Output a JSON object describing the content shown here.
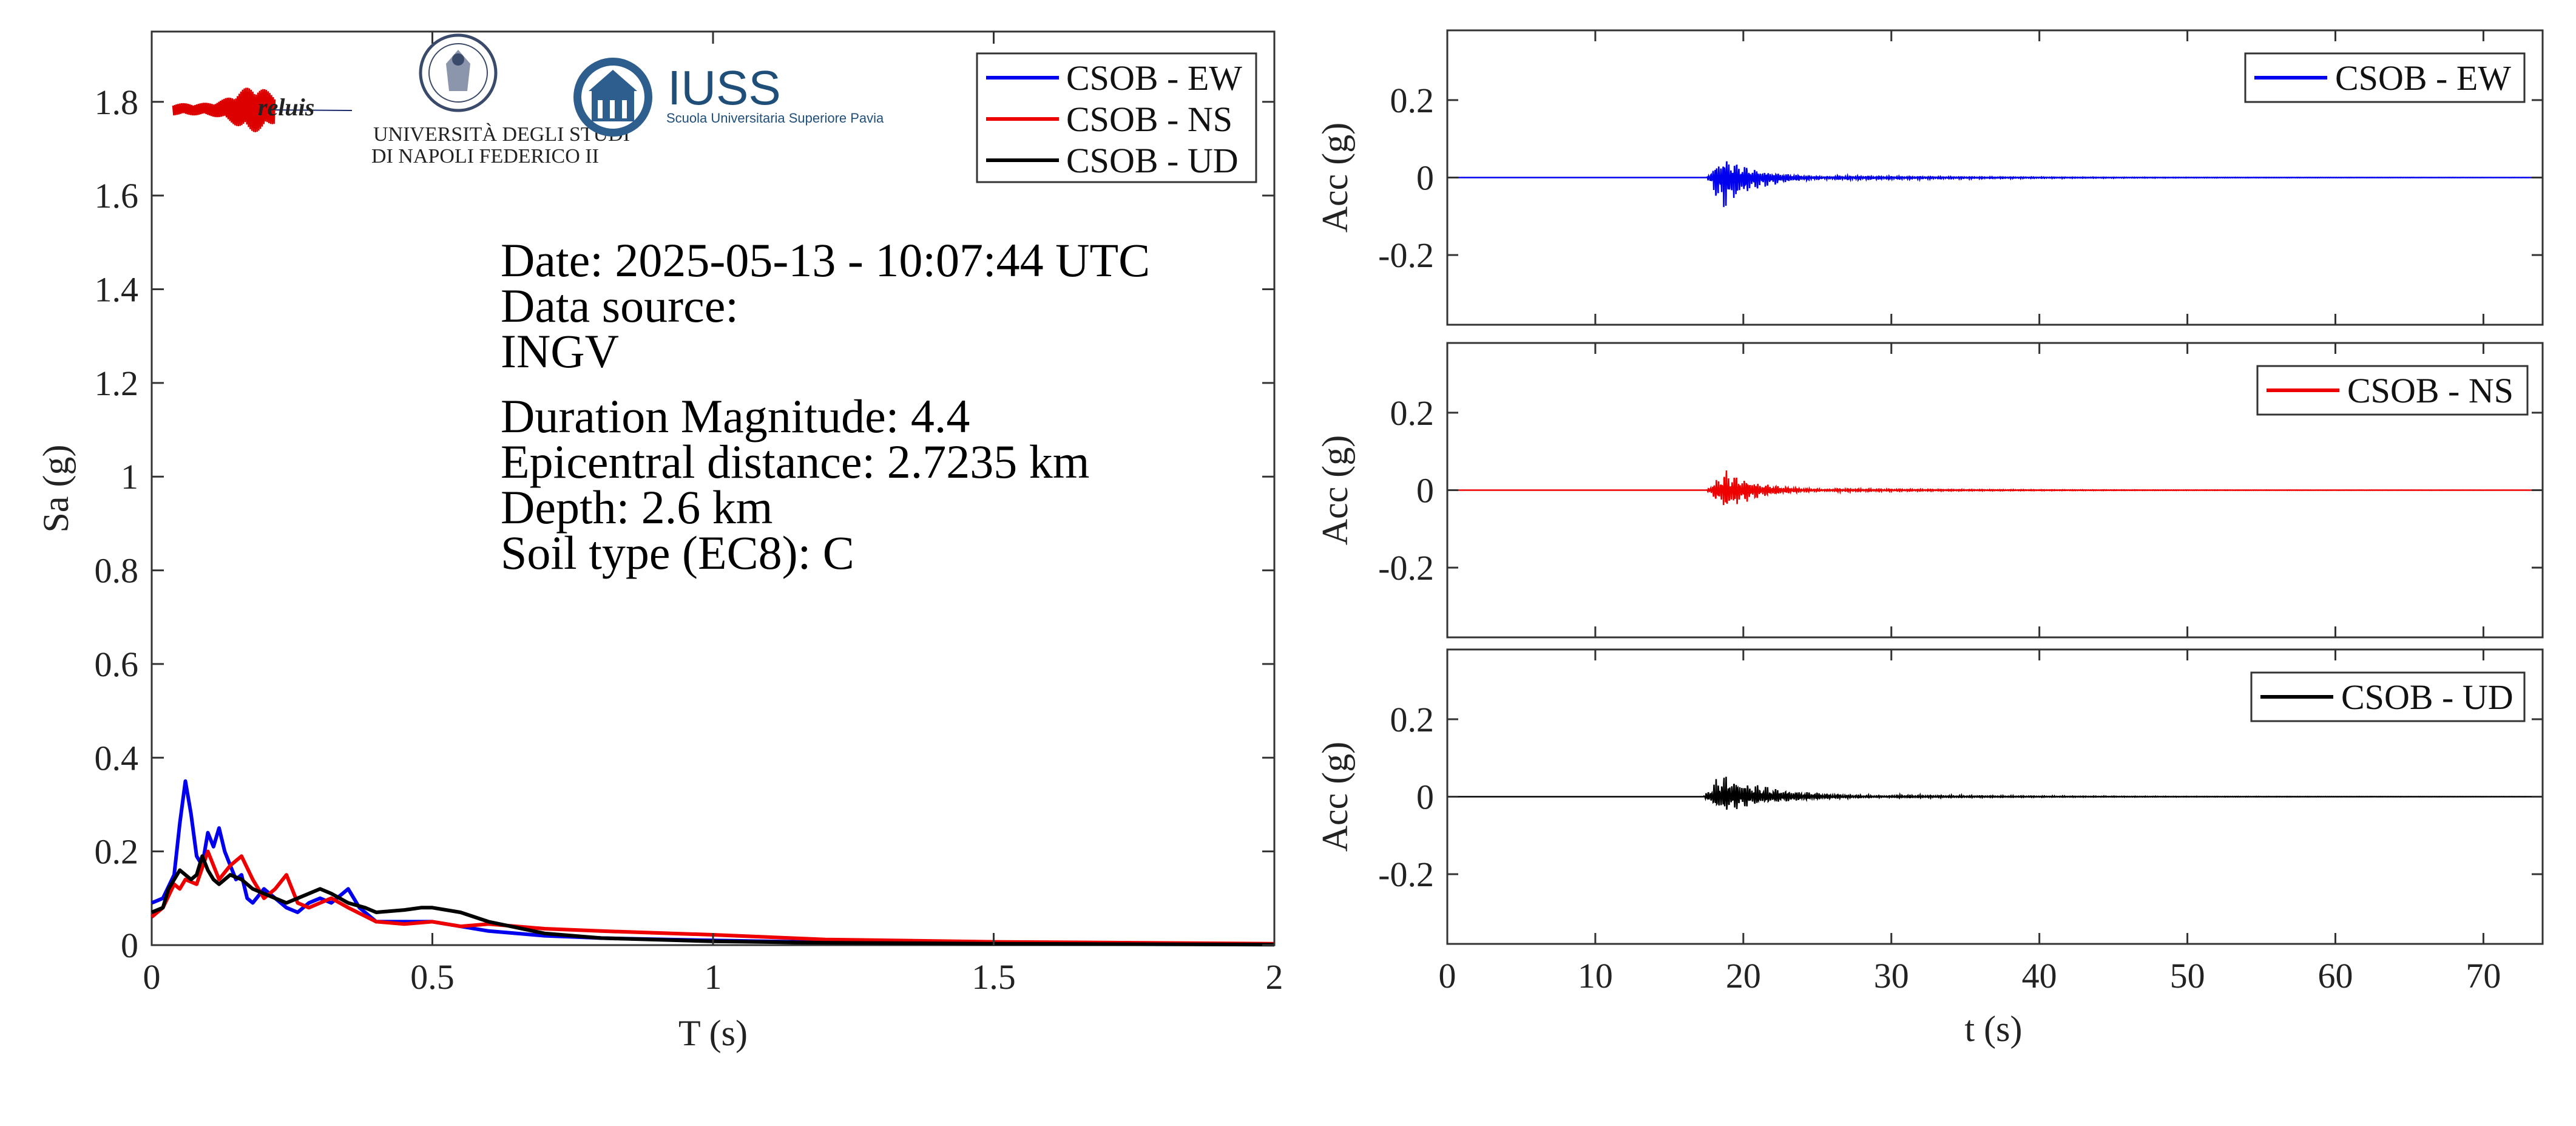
{
  "chart_data": [
    {
      "type": "line",
      "title": "",
      "xlabel": "T (s)",
      "ylabel": "Sa (g)",
      "xlim": [
        0,
        2
      ],
      "ylim": [
        0,
        1.95
      ],
      "x_ticks": [
        0,
        0.5,
        1,
        1.5,
        2
      ],
      "x_tick_labels": [
        "0",
        "0.5",
        "1",
        "1.5",
        "2"
      ],
      "y_ticks": [
        0,
        0.2,
        0.4,
        0.6,
        0.8,
        1,
        1.2,
        1.4,
        1.6,
        1.8
      ],
      "y_tick_labels": [
        "0",
        "0.2",
        "0.4",
        "0.6",
        "0.8",
        "1",
        "1.2",
        "1.4",
        "1.6",
        "1.8"
      ],
      "grid": false,
      "legend_position": "top-right",
      "series": [
        {
          "name": "CSOB - EW",
          "color": "#0000ee",
          "x": [
            0,
            0.02,
            0.04,
            0.05,
            0.06,
            0.07,
            0.08,
            0.09,
            0.1,
            0.11,
            0.12,
            0.13,
            0.14,
            0.15,
            0.16,
            0.17,
            0.18,
            0.2,
            0.22,
            0.24,
            0.26,
            0.28,
            0.3,
            0.32,
            0.35,
            0.37,
            0.4,
            0.45,
            0.5,
            0.55,
            0.6,
            0.7,
            0.8,
            1.0,
            1.2,
            1.5,
            2.0
          ],
          "y": [
            0.09,
            0.1,
            0.15,
            0.26,
            0.35,
            0.28,
            0.19,
            0.17,
            0.24,
            0.21,
            0.25,
            0.2,
            0.17,
            0.14,
            0.15,
            0.1,
            0.09,
            0.12,
            0.1,
            0.08,
            0.07,
            0.09,
            0.1,
            0.09,
            0.12,
            0.08,
            0.05,
            0.05,
            0.05,
            0.04,
            0.03,
            0.02,
            0.015,
            0.01,
            0.006,
            0.004,
            0.002
          ]
        },
        {
          "name": "CSOB - NS",
          "color": "#ee0000",
          "x": [
            0,
            0.02,
            0.04,
            0.05,
            0.06,
            0.08,
            0.1,
            0.12,
            0.14,
            0.16,
            0.18,
            0.2,
            0.22,
            0.24,
            0.26,
            0.28,
            0.3,
            0.32,
            0.35,
            0.4,
            0.45,
            0.5,
            0.55,
            0.6,
            0.7,
            0.8,
            1.0,
            1.2,
            1.5,
            2.0
          ],
          "y": [
            0.06,
            0.08,
            0.13,
            0.12,
            0.14,
            0.13,
            0.2,
            0.14,
            0.17,
            0.19,
            0.14,
            0.1,
            0.12,
            0.15,
            0.09,
            0.08,
            0.09,
            0.1,
            0.08,
            0.05,
            0.045,
            0.05,
            0.04,
            0.045,
            0.035,
            0.03,
            0.022,
            0.012,
            0.007,
            0.003
          ]
        },
        {
          "name": "CSOB - UD",
          "color": "#000000",
          "x": [
            0,
            0.02,
            0.03,
            0.05,
            0.07,
            0.08,
            0.09,
            0.1,
            0.11,
            0.12,
            0.14,
            0.16,
            0.18,
            0.2,
            0.22,
            0.24,
            0.26,
            0.28,
            0.3,
            0.32,
            0.35,
            0.38,
            0.4,
            0.45,
            0.48,
            0.5,
            0.55,
            0.6,
            0.7,
            0.8,
            1.0,
            1.2,
            1.5,
            2.0
          ],
          "y": [
            0.07,
            0.08,
            0.12,
            0.16,
            0.14,
            0.15,
            0.19,
            0.16,
            0.14,
            0.13,
            0.15,
            0.14,
            0.12,
            0.11,
            0.1,
            0.09,
            0.1,
            0.11,
            0.12,
            0.11,
            0.09,
            0.08,
            0.07,
            0.075,
            0.08,
            0.08,
            0.07,
            0.05,
            0.025,
            0.015,
            0.008,
            0.005,
            0.003,
            0.001
          ]
        }
      ]
    },
    {
      "type": "line",
      "title": "",
      "xlabel": "",
      "ylabel": "Acc (g)",
      "xlim": [
        0,
        74
      ],
      "ylim": [
        -0.38,
        0.38
      ],
      "y_ticks": [
        -0.2,
        0,
        0.2
      ],
      "y_tick_labels": [
        "-0.2",
        "0",
        "0.2"
      ],
      "x_ticks": [
        0,
        10,
        20,
        30,
        40,
        50,
        60,
        70
      ],
      "legend_position": "top-right",
      "series": [
        {
          "name": "CSOB - EW",
          "color": "#0000ee",
          "envelope": {
            "onset_s": 17.5,
            "peak_s": 18.6,
            "peak_pos_g": 0.06,
            "peak_neg_g": -0.095,
            "decay_end_s": 26
          }
        }
      ]
    },
    {
      "type": "line",
      "title": "",
      "xlabel": "",
      "ylabel": "Acc (g)",
      "xlim": [
        0,
        74
      ],
      "ylim": [
        -0.38,
        0.38
      ],
      "y_ticks": [
        -0.2,
        0,
        0.2
      ],
      "y_tick_labels": [
        "-0.2",
        "0",
        "0.2"
      ],
      "x_ticks": [
        0,
        10,
        20,
        30,
        40,
        50,
        60,
        70
      ],
      "legend_position": "top-right",
      "series": [
        {
          "name": "CSOB - NS",
          "color": "#ee0000",
          "envelope": {
            "onset_s": 17.5,
            "peak_s": 18.8,
            "peak_pos_g": 0.055,
            "peak_neg_g": -0.06,
            "decay_end_s": 26
          }
        }
      ]
    },
    {
      "type": "line",
      "title": "",
      "xlabel": "t (s)",
      "ylabel": "Acc (g)",
      "xlim": [
        0,
        74
      ],
      "ylim": [
        -0.38,
        0.38
      ],
      "y_ticks": [
        -0.2,
        0,
        0.2
      ],
      "y_tick_labels": [
        "-0.2",
        "0",
        "0.2"
      ],
      "x_ticks": [
        0,
        10,
        20,
        30,
        40,
        50,
        60,
        70
      ],
      "x_tick_labels": [
        "0",
        "10",
        "20",
        "30",
        "40",
        "50",
        "60",
        "70"
      ],
      "legend_position": "top-right",
      "series": [
        {
          "name": "CSOB - UD",
          "color": "#000000",
          "envelope": {
            "onset_s": 17.3,
            "peak_s": 18.5,
            "peak_pos_g": 0.065,
            "peak_neg_g": -0.045,
            "decay_end_s": 30
          }
        }
      ]
    }
  ],
  "info": {
    "date": "Date: 2025-05-13 - 10:07:44 UTC",
    "source_label": "Data source:",
    "source_value": "INGV",
    "magnitude": "Duration Magnitude: 4.4",
    "distance": "Epicentral distance: 2.7235 km",
    "depth": "Depth: 2.6 km",
    "soil": "Soil type (EC8): C"
  },
  "logos": {
    "reluis": "reluis",
    "unina_line1": "UNIVERSITÀ DEGLI STUDI",
    "unina_line2": "DI NAPOLI FEDERICO II",
    "iuss_name": "IUSS",
    "iuss_sub": "Scuola Universitaria Superiore Pavia"
  }
}
